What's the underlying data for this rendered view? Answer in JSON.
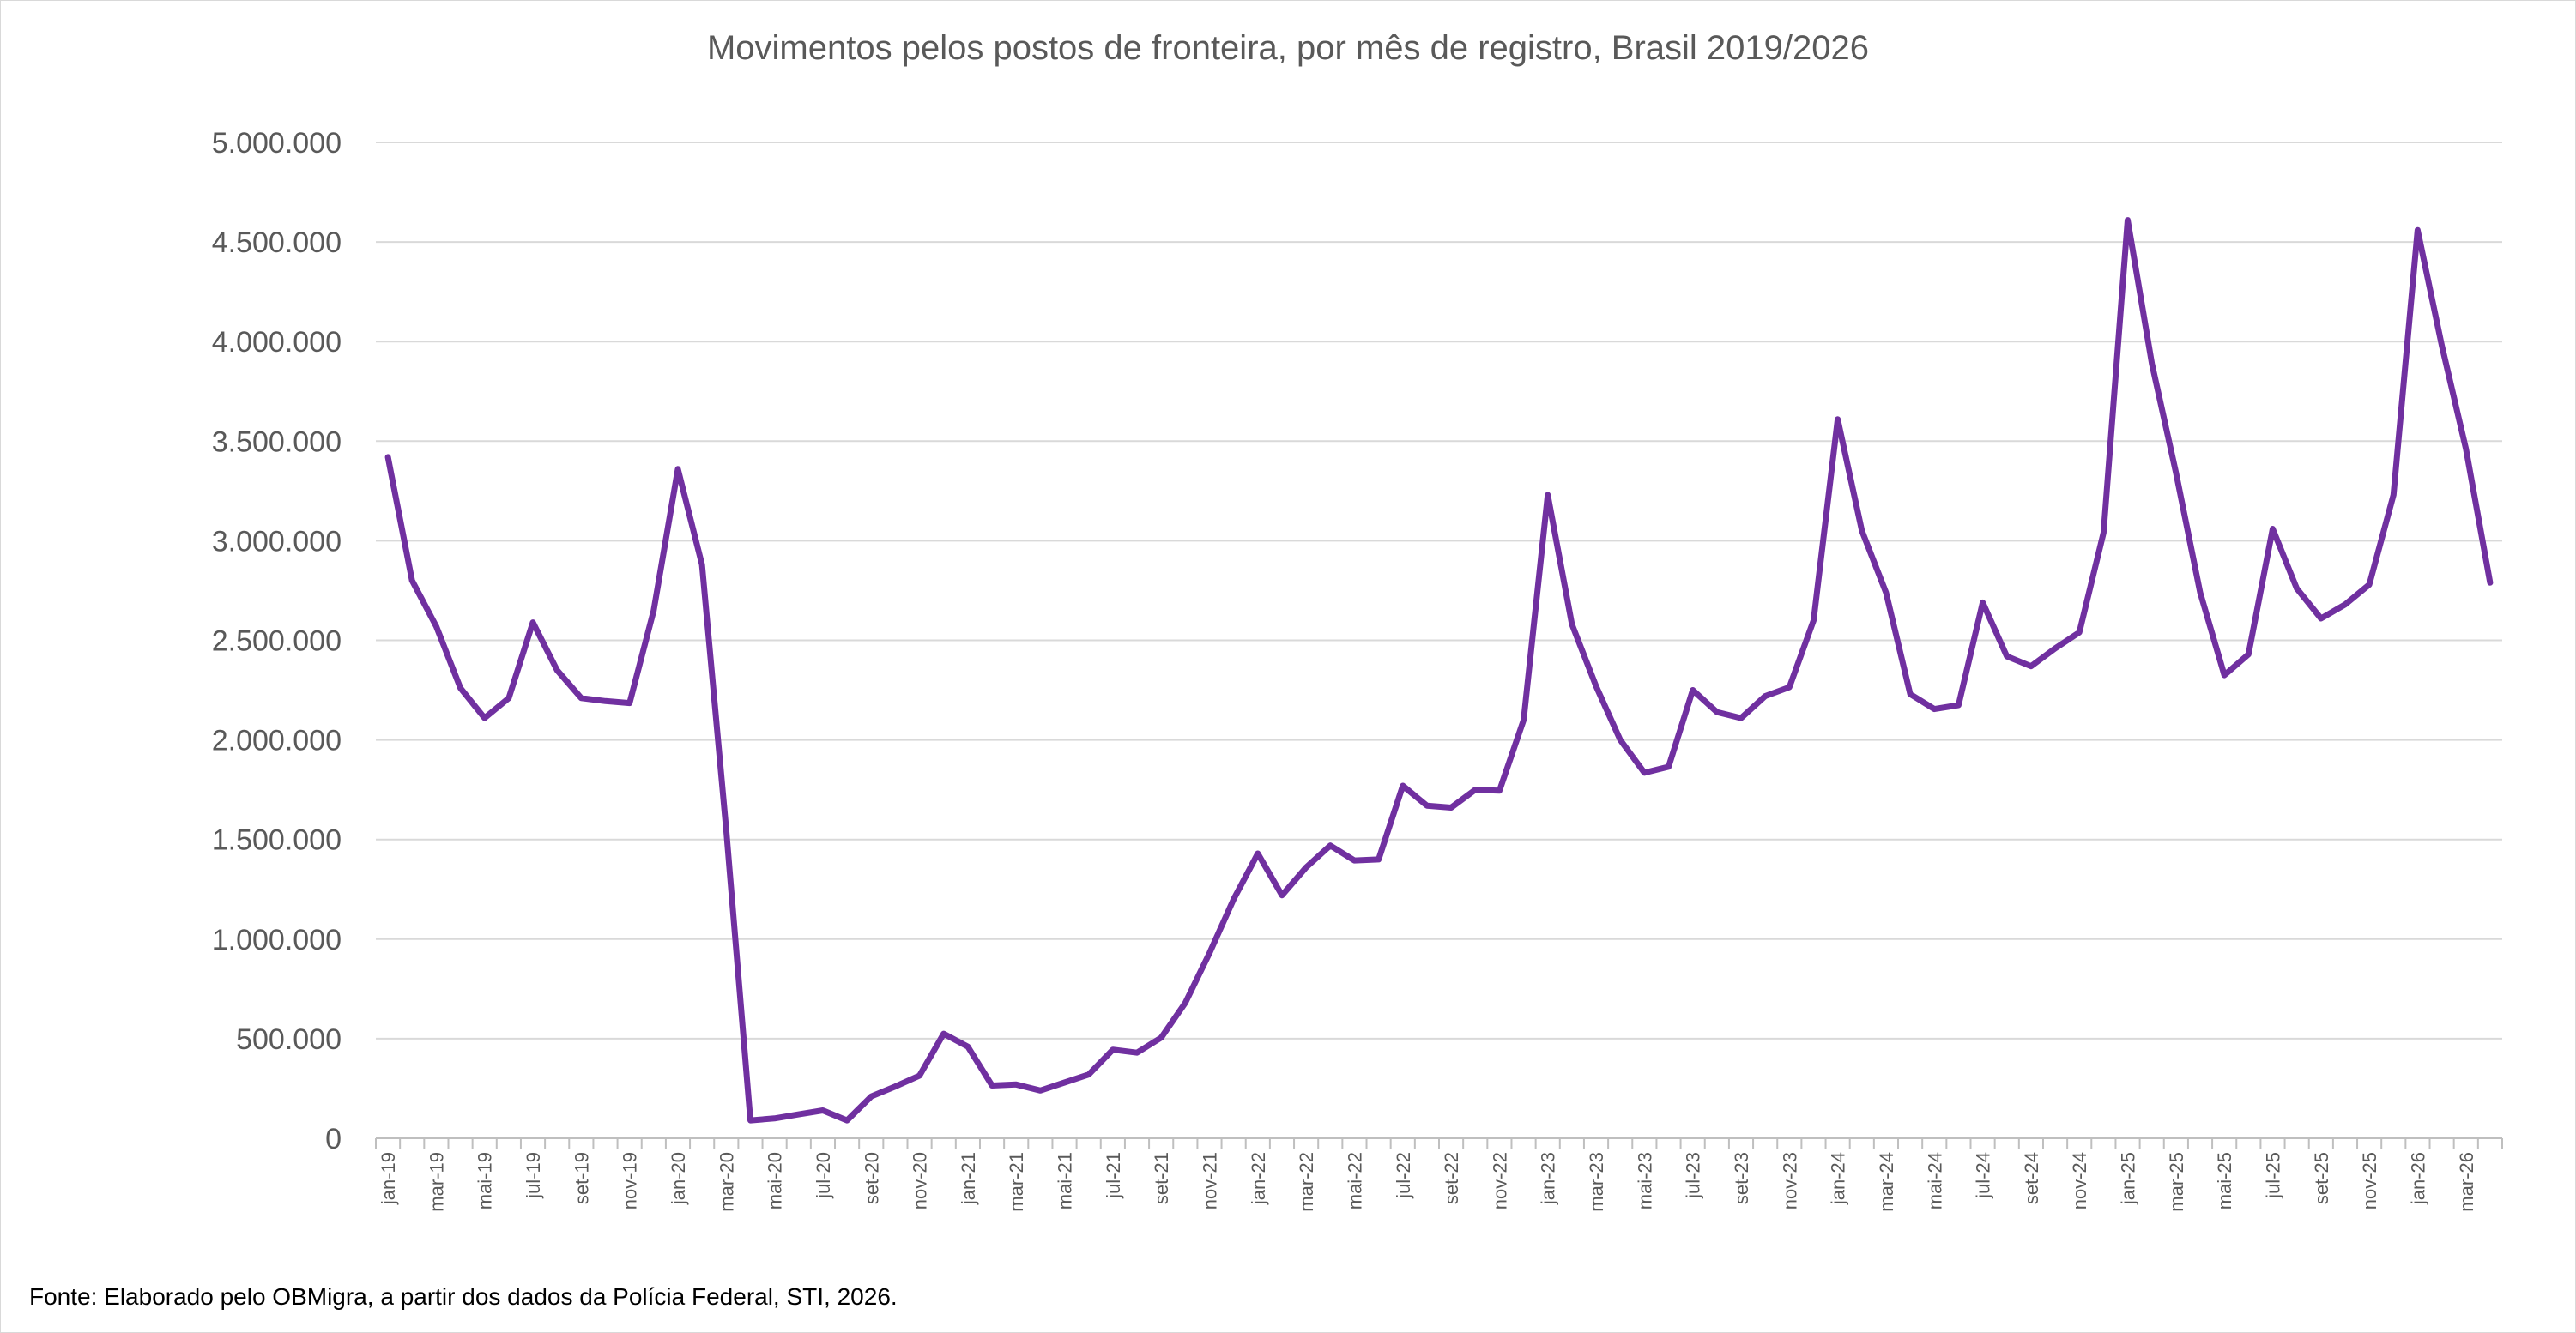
{
  "chart_data": {
    "type": "line",
    "title": "Movimentos pelos postos de fronteira, por mês de registro, Brasil 2019/2026",
    "xlabel": "",
    "ylabel": "",
    "ylim": [
      0,
      5000000
    ],
    "grid": true,
    "legend": "none",
    "y_ticks": [
      {
        "value": 0,
        "label": "0"
      },
      {
        "value": 500000,
        "label": "500.000"
      },
      {
        "value": 1000000,
        "label": "1.000.000"
      },
      {
        "value": 1500000,
        "label": "1.500.000"
      },
      {
        "value": 2000000,
        "label": "2.000.000"
      },
      {
        "value": 2500000,
        "label": "2.500.000"
      },
      {
        "value": 3000000,
        "label": "3.000.000"
      },
      {
        "value": 3500000,
        "label": "3.500.000"
      },
      {
        "value": 4000000,
        "label": "4.000.000"
      },
      {
        "value": 4500000,
        "label": "4.500.000"
      },
      {
        "value": 5000000,
        "label": "5.000.000"
      }
    ],
    "x_tick_labels": [
      "jan-19",
      "mar-19",
      "mai-19",
      "jul-19",
      "set-19",
      "nov-19",
      "jan-20",
      "mar-20",
      "mai-20",
      "jul-20",
      "set-20",
      "nov-20",
      "jan-21",
      "mar-21",
      "mai-21",
      "jul-21",
      "set-21",
      "nov-21",
      "jan-22",
      "mar-22",
      "mai-22",
      "jul-22",
      "set-22",
      "nov-22",
      "jan-23",
      "mar-23",
      "mai-23",
      "jul-23",
      "set-23",
      "nov-23",
      "jan-24",
      "mar-24",
      "mai-24",
      "jul-24",
      "set-24",
      "nov-24",
      "jan-25",
      "mar-25",
      "mai-25",
      "jul-25",
      "set-25",
      "nov-25",
      "jan-26",
      "mar-26"
    ],
    "series": [
      {
        "color": "#7030a0",
        "values": [
          3420000,
          2800000,
          2570000,
          2260000,
          2110000,
          2210000,
          2590000,
          2350000,
          2210000,
          2195000,
          2185000,
          2650000,
          3360000,
          2880000,
          1550000,
          90000,
          100000,
          120000,
          140000,
          90000,
          210000,
          260000,
          315000,
          525000,
          460000,
          265000,
          270000,
          240000,
          280000,
          320000,
          445000,
          430000,
          505000,
          680000,
          930000,
          1200000,
          1430000,
          1220000,
          1360000,
          1470000,
          1395000,
          1400000,
          1770000,
          1670000,
          1660000,
          1750000,
          1745000,
          2100000,
          3230000,
          2580000,
          2270000,
          2000000,
          1835000,
          1865000,
          2250000,
          2140000,
          2110000,
          2220000,
          2265000,
          2600000,
          3610000,
          3050000,
          2740000,
          2230000,
          2155000,
          2175000,
          2690000,
          2420000,
          2370000,
          2460000,
          2540000,
          3040000,
          4610000,
          3890000,
          3340000,
          2740000,
          2325000,
          2430000,
          3060000,
          2760000,
          2610000,
          2680000,
          2780000,
          3230000,
          4560000,
          3980000,
          3460000,
          2790000
        ]
      }
    ]
  },
  "source_note": "Fonte: Elaborado pelo OBMigra,  a partir dos dados da Polícia Federal, STI, 2026."
}
